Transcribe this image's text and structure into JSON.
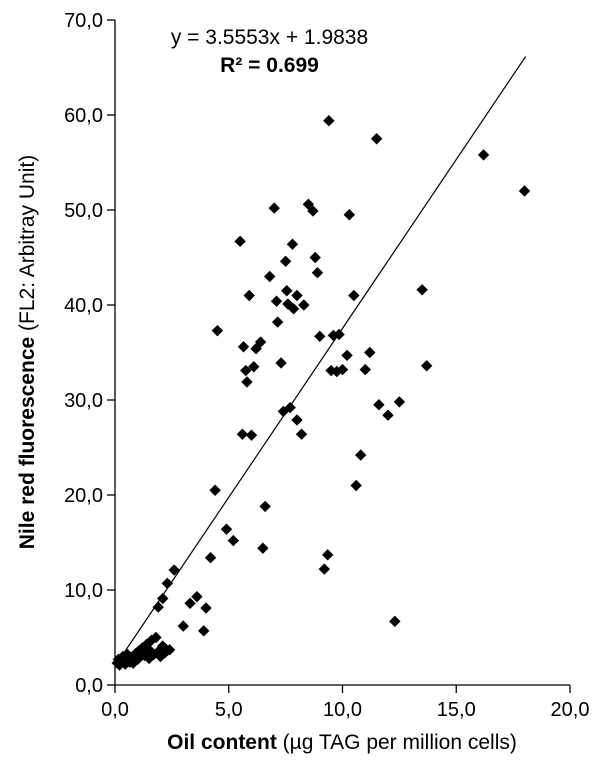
{
  "chart_data": {
    "type": "scatter",
    "title": "",
    "equation": "y = 3.5553x + 1.9838",
    "r2_label": "R² = 0.699",
    "xlabel_bold": "Oil content",
    "xlabel_normal": " (µg TAG per million cells)",
    "ylabel_bold": "Nile red fluorescence",
    "ylabel_normal": " (FL2: Arbitray Unit)",
    "xlim": [
      0,
      20
    ],
    "ylim": [
      0,
      70
    ],
    "x_ticks": [
      0,
      5,
      10,
      15,
      20
    ],
    "x_tick_labels": [
      "0,0",
      "5,0",
      "10,0",
      "15,0",
      "20,0"
    ],
    "y_ticks": [
      0,
      10,
      20,
      30,
      40,
      50,
      60,
      70
    ],
    "y_tick_labels": [
      "0,0",
      "10,0",
      "20,0",
      "30,0",
      "40,0",
      "50,0",
      "60,0",
      "70,0"
    ],
    "grid": false,
    "legend": "none",
    "trendline": {
      "slope": 3.5553,
      "intercept": 1.9838,
      "x_start": 0.15,
      "x_end": 18.05,
      "color": "#000000"
    },
    "marker": {
      "shape": "diamond",
      "color": "#000000",
      "size": 5.7
    },
    "points": [
      [
        0.1,
        2.3
      ],
      [
        0.15,
        2.7
      ],
      [
        0.2,
        2.1
      ],
      [
        0.3,
        2.5
      ],
      [
        0.35,
        3.0
      ],
      [
        0.45,
        2.2
      ],
      [
        0.5,
        2.7
      ],
      [
        0.55,
        3.2
      ],
      [
        0.65,
        2.4
      ],
      [
        0.7,
        2.9
      ],
      [
        0.8,
        2.3
      ],
      [
        0.9,
        3.3
      ],
      [
        1.0,
        2.7
      ],
      [
        1.05,
        3.6
      ],
      [
        1.1,
        3.0
      ],
      [
        1.2,
        3.9
      ],
      [
        1.3,
        3.1
      ],
      [
        1.4,
        4.3
      ],
      [
        1.5,
        2.8
      ],
      [
        1.55,
        3.6
      ],
      [
        1.6,
        4.7
      ],
      [
        1.7,
        3.2
      ],
      [
        1.8,
        5.0
      ],
      [
        1.9,
        3.5
      ],
      [
        2.0,
        3.0
      ],
      [
        2.1,
        4.1
      ],
      [
        2.2,
        3.4
      ],
      [
        2.4,
        3.7
      ],
      [
        1.9,
        8.2
      ],
      [
        2.1,
        9.1
      ],
      [
        2.3,
        10.7
      ],
      [
        2.6,
        12.1
      ],
      [
        3.0,
        6.2
      ],
      [
        3.3,
        8.6
      ],
      [
        3.6,
        9.3
      ],
      [
        3.9,
        5.7
      ],
      [
        4.0,
        8.1
      ],
      [
        4.2,
        13.4
      ],
      [
        4.4,
        20.5
      ],
      [
        4.9,
        16.4
      ],
      [
        5.2,
        15.2
      ],
      [
        6.5,
        14.4
      ],
      [
        6.6,
        18.8
      ],
      [
        9.2,
        12.2
      ],
      [
        9.35,
        13.7
      ],
      [
        12.3,
        6.7
      ],
      [
        4.5,
        37.3
      ],
      [
        5.5,
        46.7
      ],
      [
        5.6,
        26.4
      ],
      [
        5.65,
        35.6
      ],
      [
        5.75,
        33.1
      ],
      [
        5.8,
        31.9
      ],
      [
        5.9,
        41.0
      ],
      [
        6.0,
        26.3
      ],
      [
        6.1,
        33.5
      ],
      [
        6.2,
        35.4
      ],
      [
        6.4,
        36.1
      ],
      [
        6.8,
        43.0
      ],
      [
        7.0,
        50.2
      ],
      [
        7.1,
        40.4
      ],
      [
        7.15,
        38.2
      ],
      [
        7.3,
        33.9
      ],
      [
        7.4,
        28.8
      ],
      [
        7.5,
        44.6
      ],
      [
        7.55,
        41.5
      ],
      [
        7.6,
        40.1
      ],
      [
        7.7,
        29.2
      ],
      [
        7.8,
        46.4
      ],
      [
        7.85,
        39.6
      ],
      [
        8.0,
        41.0
      ],
      [
        8.0,
        27.9
      ],
      [
        8.2,
        26.4
      ],
      [
        8.3,
        40.0
      ],
      [
        8.5,
        50.6
      ],
      [
        8.7,
        49.9
      ],
      [
        8.8,
        45.0
      ],
      [
        8.9,
        43.4
      ],
      [
        9.0,
        36.7
      ],
      [
        9.4,
        59.4
      ],
      [
        9.5,
        33.1
      ],
      [
        9.6,
        36.8
      ],
      [
        9.75,
        33.0
      ],
      [
        9.85,
        36.9
      ],
      [
        10.0,
        33.2
      ],
      [
        10.2,
        34.7
      ],
      [
        10.3,
        49.5
      ],
      [
        10.5,
        41.0
      ],
      [
        10.6,
        21.0
      ],
      [
        10.8,
        24.2
      ],
      [
        11.0,
        33.2
      ],
      [
        11.2,
        35.0
      ],
      [
        11.5,
        57.5
      ],
      [
        11.6,
        29.5
      ],
      [
        12.0,
        28.4
      ],
      [
        12.5,
        29.8
      ],
      [
        13.5,
        41.6
      ],
      [
        13.7,
        33.6
      ],
      [
        16.2,
        55.8
      ],
      [
        18.0,
        52.0
      ]
    ]
  }
}
